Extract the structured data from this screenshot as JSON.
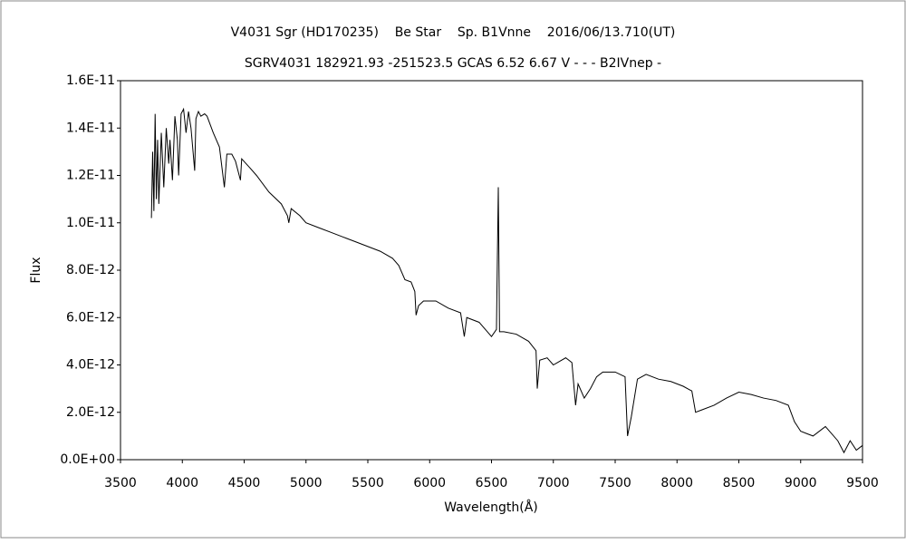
{
  "chart_data": {
    "type": "line",
    "title": "V4031 Sgr (HD170235)    Be Star    Sp. B1Vnne    2016/06/13.710(UT)",
    "subtitle": "SGRV4031 182921.93 -251523.5 GCAS 6.52 6.67 V - - - B2IVnep -",
    "x_label": "Wavelength(Å)",
    "y_label": "Flux",
    "color": "#000000",
    "xlim": [
      3500,
      9500
    ],
    "xticks": [
      3500,
      4000,
      4500,
      5000,
      5500,
      6000,
      6500,
      7000,
      7500,
      8000,
      8500,
      9000,
      9500
    ],
    "ylim": [
      0,
      1.6e-11
    ],
    "yticks": [
      {
        "value": 0,
        "label": "0.0E+00"
      },
      {
        "value": 2e-12,
        "label": "2.0E-12"
      },
      {
        "value": 4e-12,
        "label": "4.0E-12"
      },
      {
        "value": 6e-12,
        "label": "6.0E-12"
      },
      {
        "value": 8e-12,
        "label": "8.0E-12"
      },
      {
        "value": 1e-11,
        "label": "1.0E-11"
      },
      {
        "value": 1.2e-11,
        "label": "1.2E-11"
      },
      {
        "value": 1.4e-11,
        "label": "1.4E-11"
      },
      {
        "value": 1.6e-11,
        "label": "1.6E-11"
      }
    ],
    "x": [
      3750,
      3760,
      3770,
      3780,
      3790,
      3800,
      3810,
      3830,
      3850,
      3870,
      3890,
      3900,
      3920,
      3940,
      3960,
      3970,
      3990,
      4010,
      4030,
      4050,
      4070,
      4100,
      4110,
      4130,
      4150,
      4180,
      4200,
      4250,
      4300,
      4340,
      4360,
      4400,
      4430,
      4470,
      4480,
      4550,
      4600,
      4700,
      4800,
      4850,
      4861,
      4880,
      4950,
      5000,
      5100,
      5200,
      5300,
      5400,
      5500,
      5600,
      5700,
      5750,
      5800,
      5850,
      5880,
      5890,
      5910,
      5950,
      6050,
      6150,
      6250,
      6280,
      6300,
      6400,
      6500,
      6540,
      6555,
      6565,
      6600,
      6700,
      6800,
      6860,
      6870,
      6890,
      6950,
      7000,
      7100,
      7150,
      7180,
      7200,
      7250,
      7300,
      7350,
      7400,
      7500,
      7580,
      7600,
      7630,
      7680,
      7750,
      7850,
      7950,
      8050,
      8120,
      8150,
      8200,
      8300,
      8400,
      8500,
      8600,
      8700,
      8800,
      8900,
      8950,
      9000,
      9100,
      9200,
      9300,
      9350,
      9400,
      9450,
      9500
    ],
    "values": [
      1.02e-11,
      1.3e-11,
      1.05e-11,
      1.46e-11,
      1.1e-11,
      1.35e-11,
      1.08e-11,
      1.38e-11,
      1.15e-11,
      1.4e-11,
      1.25e-11,
      1.35e-11,
      1.18e-11,
      1.45e-11,
      1.35e-11,
      1.2e-11,
      1.46e-11,
      1.48e-11,
      1.38e-11,
      1.47e-11,
      1.4e-11,
      1.22e-11,
      1.44e-11,
      1.47e-11,
      1.45e-11,
      1.46e-11,
      1.45e-11,
      1.38e-11,
      1.32e-11,
      1.15e-11,
      1.29e-11,
      1.29e-11,
      1.26e-11,
      1.18e-11,
      1.27e-11,
      1.23e-11,
      1.2e-11,
      1.13e-11,
      1.08e-11,
      1.03e-11,
      1e-11,
      1.06e-11,
      1.03e-11,
      1e-11,
      9.8e-12,
      9.6e-12,
      9.4e-12,
      9.2e-12,
      9e-12,
      8.8e-12,
      8.5e-12,
      8.2e-12,
      7.6e-12,
      7.5e-12,
      7.1e-12,
      6.1e-12,
      6.5e-12,
      6.7e-12,
      6.7e-12,
      6.4e-12,
      6.2e-12,
      5.2e-12,
      6e-12,
      5.8e-12,
      5.2e-12,
      5.5e-12,
      1.15e-11,
      5.4e-12,
      5.4e-12,
      5.3e-12,
      5e-12,
      4.6e-12,
      3e-12,
      4.2e-12,
      4.3e-12,
      4e-12,
      4.3e-12,
      4.1e-12,
      2.3e-12,
      3.2e-12,
      2.6e-12,
      3e-12,
      3.5e-12,
      3.7e-12,
      3.7e-12,
      3.5e-12,
      1e-12,
      1.8e-12,
      3.4e-12,
      3.6e-12,
      3.4e-12,
      3.3e-12,
      3.1e-12,
      2.9e-12,
      2e-12,
      2.1e-12,
      2.3e-12,
      2.6e-12,
      2.85e-12,
      2.75e-12,
      2.6e-12,
      2.5e-12,
      2.3e-12,
      1.6e-12,
      1.2e-12,
      1e-12,
      1.4e-12,
      8e-13,
      3e-13,
      8e-13,
      4e-13,
      6e-13
    ]
  }
}
